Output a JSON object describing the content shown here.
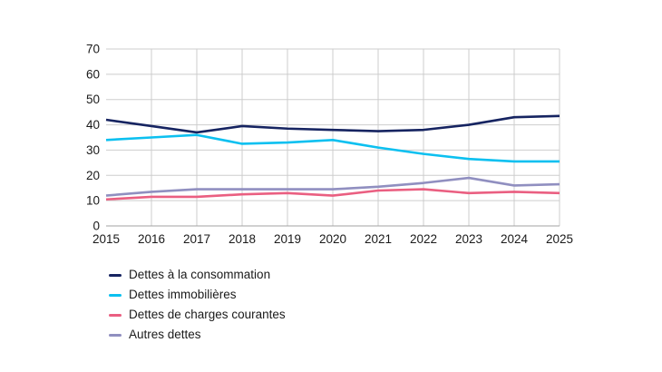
{
  "chart_data": {
    "type": "line",
    "title": "",
    "xlabel": "",
    "ylabel": "",
    "x": [
      "2015",
      "2016",
      "2017",
      "2018",
      "2019",
      "2020",
      "2021",
      "2022",
      "2023",
      "2024",
      "2025"
    ],
    "series": [
      {
        "name": "Dettes à la consommation",
        "color": "#162461",
        "values": [
          42,
          39.5,
          37,
          39.5,
          38.5,
          38,
          37.5,
          38,
          40,
          43,
          43.5
        ]
      },
      {
        "name": "Dettes immobilières",
        "color": "#0cc0f0",
        "values": [
          34,
          35,
          36,
          32.5,
          33,
          34,
          31,
          28.5,
          26.5,
          25.5,
          25.5
        ]
      },
      {
        "name": "Dettes de charges courantes",
        "color": "#ea5f81",
        "values": [
          10.5,
          11.5,
          11.5,
          12.5,
          13,
          12,
          14,
          14.5,
          13,
          13.5,
          13
        ]
      },
      {
        "name": "Autres dettes",
        "color": "#908fc0",
        "values": [
          12,
          13.5,
          14.5,
          14.5,
          14.5,
          14.5,
          15.5,
          17,
          19,
          16,
          16.5
        ]
      }
    ],
    "ylim": [
      0,
      70
    ],
    "yticks": [
      0,
      10,
      20,
      30,
      40,
      50,
      60,
      70
    ],
    "grid": true,
    "legend_position": "bottom-left"
  },
  "style": {
    "background": "#ffffff",
    "grid_color": "#cdcdcd",
    "axis_color": "#a3a3a3",
    "text_color": "#1a1a1a",
    "line_width": 2.6
  }
}
